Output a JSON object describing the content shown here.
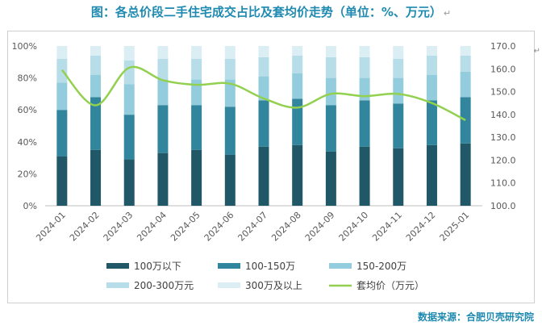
{
  "title": "图：各总价段二手住宅成交占比及套均价走势（单位：%、万元）",
  "title_mark": "↵",
  "source": "数据来源：合肥贝壳研究院",
  "corner_glyph": "↵",
  "colors": {
    "seg1": "#215868",
    "seg2": "#31859c",
    "seg3": "#93cddd",
    "seg4": "#b7dde8",
    "seg5": "#dbeef4",
    "line": "#92d050",
    "title": "#1f8ab0"
  },
  "chart_data": {
    "type": "bar",
    "stacked": true,
    "categories": [
      "2024-01",
      "2024-02",
      "2024-03",
      "2024-04",
      "2024-05",
      "2024-06",
      "2024-07",
      "2024-08",
      "2024-09",
      "2024-10",
      "2024-11",
      "2024-12",
      "2025-01"
    ],
    "series": [
      {
        "name": "100万以下",
        "values": [
          31,
          35,
          29,
          33,
          35,
          32,
          37,
          38,
          34,
          37,
          36,
          38,
          39
        ]
      },
      {
        "name": "100-150万",
        "values": [
          29,
          33,
          28,
          30,
          28,
          30,
          29,
          29,
          29,
          29,
          28,
          28,
          29
        ]
      },
      {
        "name": "150-200万",
        "values": [
          17,
          14,
          19,
          16,
          16,
          17,
          15,
          16,
          17,
          14,
          16,
          16,
          16
        ]
      },
      {
        "name": "200-300万元",
        "values": [
          15,
          12,
          15,
          13,
          13,
          13,
          12,
          11,
          13,
          13,
          12,
          12,
          10
        ]
      },
      {
        "name": "300万及以上",
        "values": [
          8,
          6,
          9,
          8,
          8,
          8,
          7,
          6,
          7,
          7,
          8,
          6,
          6
        ]
      }
    ],
    "line_series": {
      "name": "套均价（万元）",
      "values": [
        159.5,
        144,
        160.5,
        155,
        153,
        153.5,
        147,
        143,
        149,
        148,
        149,
        145,
        137.5
      ],
      "axis": "right"
    },
    "yleft_ticks": [
      "0%",
      "20%",
      "40%",
      "60%",
      "80%",
      "100%"
    ],
    "ylim_left": [
      0,
      100
    ],
    "yright_ticks": [
      "100.0",
      "110.0",
      "120.0",
      "130.0",
      "140.0",
      "150.0",
      "160.0",
      "170.0"
    ],
    "ylim_right": [
      100,
      170
    ],
    "grid": false,
    "legend_position": "bottom"
  }
}
